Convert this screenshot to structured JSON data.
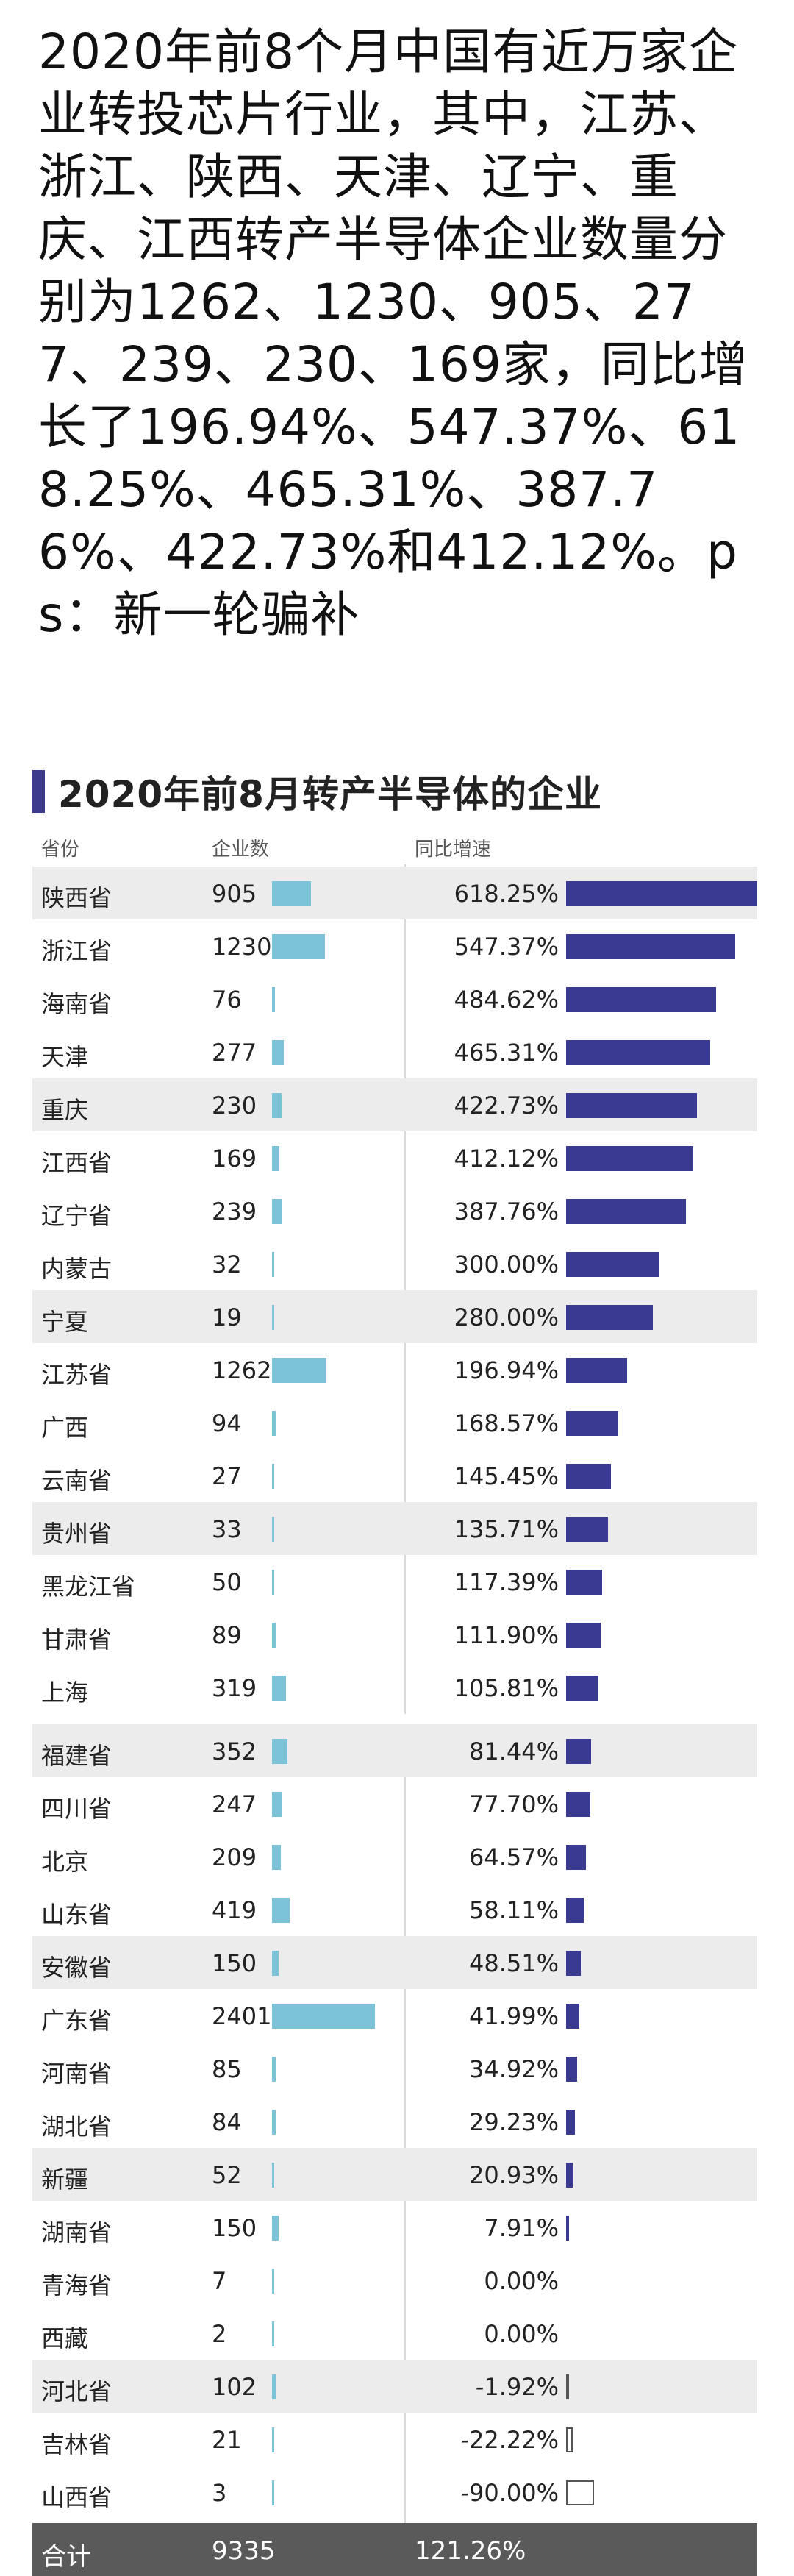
{
  "intro_text": "2020年前8个月中国有近万家企业转投芯片行业，其中，江苏、浙江、陕西、天津、辽宁、重庆、江西转产半导体企业数量分别为1262、1230、905、277、239、230、169家，同比增长了196.94%、547.37%、618.25%、465.31%、387.76%、422.73%和412.12%。ps：新一轮骗补",
  "chart_data": {
    "type": "table",
    "title": "2020年前8月转产半导体的企业",
    "columns": [
      "省份",
      "企业数",
      "同比增速"
    ],
    "rows": [
      {
        "province": "陕西省",
        "count": 905,
        "growth": 618.25,
        "growth_label": "618.25%"
      },
      {
        "province": "浙江省",
        "count": 1230,
        "growth": 547.37,
        "growth_label": "547.37%"
      },
      {
        "province": "海南省",
        "count": 76,
        "growth": 484.62,
        "growth_label": "484.62%"
      },
      {
        "province": "天津",
        "count": 277,
        "growth": 465.31,
        "growth_label": "465.31%"
      },
      {
        "province": "重庆",
        "count": 230,
        "growth": 422.73,
        "growth_label": "422.73%"
      },
      {
        "province": "江西省",
        "count": 169,
        "growth": 412.12,
        "growth_label": "412.12%"
      },
      {
        "province": "辽宁省",
        "count": 239,
        "growth": 387.76,
        "growth_label": "387.76%"
      },
      {
        "province": "内蒙古",
        "count": 32,
        "growth": 300.0,
        "growth_label": "300.00%"
      },
      {
        "province": "宁夏",
        "count": 19,
        "growth": 280.0,
        "growth_label": "280.00%"
      },
      {
        "province": "江苏省",
        "count": 1262,
        "growth": 196.94,
        "growth_label": "196.94%"
      },
      {
        "province": "广西",
        "count": 94,
        "growth": 168.57,
        "growth_label": "168.57%"
      },
      {
        "province": "云南省",
        "count": 27,
        "growth": 145.45,
        "growth_label": "145.45%"
      },
      {
        "province": "贵州省",
        "count": 33,
        "growth": 135.71,
        "growth_label": "135.71%"
      },
      {
        "province": "黑龙江省",
        "count": 50,
        "growth": 117.39,
        "growth_label": "117.39%"
      },
      {
        "province": "甘肃省",
        "count": 89,
        "growth": 111.9,
        "growth_label": "111.90%"
      },
      {
        "province": "上海",
        "count": 319,
        "growth": 105.81,
        "growth_label": "105.81%"
      },
      {
        "province": "福建省",
        "count": 352,
        "growth": 81.44,
        "growth_label": "81.44%"
      },
      {
        "province": "四川省",
        "count": 247,
        "growth": 77.7,
        "growth_label": "77.70%"
      },
      {
        "province": "北京",
        "count": 209,
        "growth": 64.57,
        "growth_label": "64.57%"
      },
      {
        "province": "山东省",
        "count": 419,
        "growth": 58.11,
        "growth_label": "58.11%"
      },
      {
        "province": "安徽省",
        "count": 150,
        "growth": 48.51,
        "growth_label": "48.51%"
      },
      {
        "province": "广东省",
        "count": 2401,
        "growth": 41.99,
        "growth_label": "41.99%"
      },
      {
        "province": "河南省",
        "count": 85,
        "growth": 34.92,
        "growth_label": "34.92%"
      },
      {
        "province": "湖北省",
        "count": 84,
        "growth": 29.23,
        "growth_label": "29.23%"
      },
      {
        "province": "新疆",
        "count": 52,
        "growth": 20.93,
        "growth_label": "20.93%"
      },
      {
        "province": "湖南省",
        "count": 150,
        "growth": 7.91,
        "growth_label": "7.91%"
      },
      {
        "province": "青海省",
        "count": 7,
        "growth": 0.0,
        "growth_label": "0.00%"
      },
      {
        "province": "西藏",
        "count": 2,
        "growth": 0.0,
        "growth_label": "0.00%"
      },
      {
        "province": "河北省",
        "count": 102,
        "growth": -1.92,
        "growth_label": "-1.92%"
      },
      {
        "province": "吉林省",
        "count": 21,
        "growth": -22.22,
        "growth_label": "-22.22%"
      },
      {
        "province": "山西省",
        "count": 3,
        "growth": -90.0,
        "growth_label": "-90.00%"
      }
    ],
    "total": {
      "label": "合计",
      "count": 9335,
      "growth_label": "121.26%"
    },
    "shaded_rows": [
      0,
      4,
      8,
      12,
      16,
      20,
      24,
      28
    ],
    "colors": {
      "count_bar": "#7cc3d8",
      "growth_bar": "#3b3a93",
      "title_accent": "#3c3a8a",
      "total_row": "#5a5a5a"
    }
  }
}
